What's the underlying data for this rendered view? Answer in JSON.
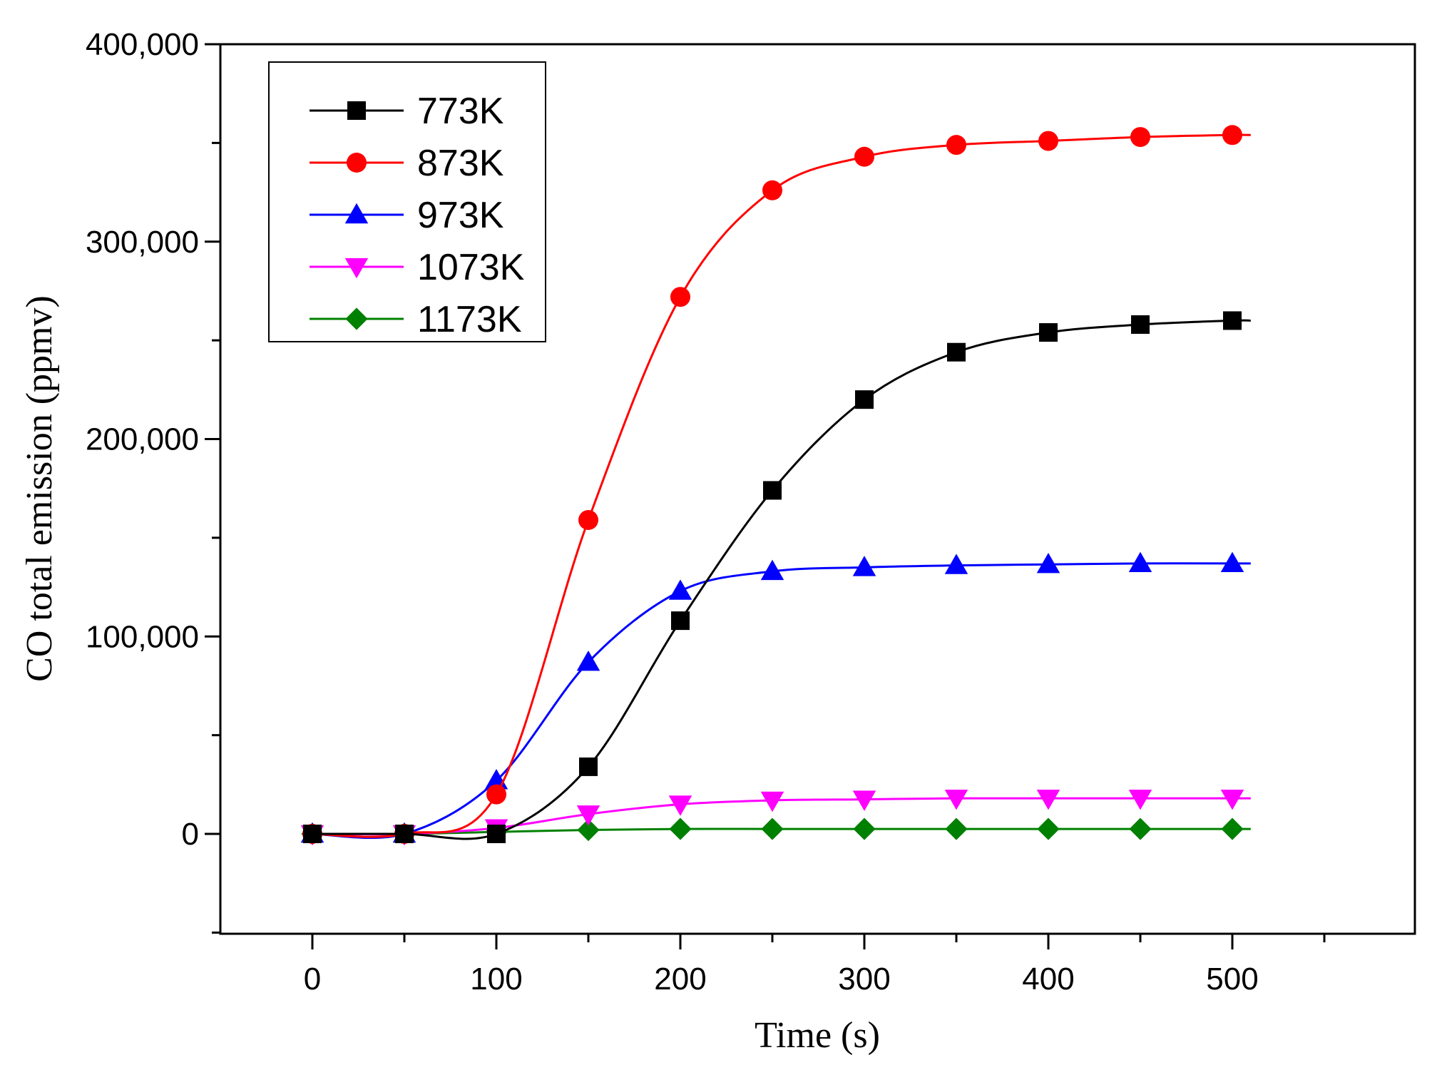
{
  "chart_data": {
    "type": "line",
    "title": "",
    "xlabel": "Time (s)",
    "ylabel": "CO total emission (ppmv)",
    "xlim": [
      -50,
      600
    ],
    "ylim": [
      -50000,
      400000
    ],
    "xticks": [
      0,
      100,
      200,
      300,
      400,
      500
    ],
    "xtick_labels": [
      "0",
      "100",
      "200",
      "300",
      "400",
      "500"
    ],
    "yticks": [
      0,
      100000,
      200000,
      300000,
      400000
    ],
    "ytick_labels": [
      "0",
      "100,000",
      "200,000",
      "300,000",
      "400,000"
    ],
    "legend_position": "top-left",
    "x": [
      0,
      50,
      100,
      150,
      200,
      250,
      300,
      350,
      400,
      450,
      500
    ],
    "series": [
      {
        "name": "773K",
        "color": "#000000",
        "marker": "square",
        "values": [
          0,
          0,
          0,
          34000,
          108000,
          174000,
          220000,
          244000,
          254000,
          258000,
          260000
        ]
      },
      {
        "name": "873K",
        "color": "#ff0000",
        "marker": "circle",
        "values": [
          0,
          0,
          20000,
          159000,
          272000,
          326000,
          343000,
          349000,
          351000,
          353000,
          354000
        ]
      },
      {
        "name": "973K",
        "color": "#0000ff",
        "marker": "triangle-up",
        "values": [
          0,
          0,
          27000,
          87000,
          123000,
          133000,
          135000,
          136000,
          136500,
          137000,
          137000
        ]
      },
      {
        "name": "1073K",
        "color": "#ff00ff",
        "marker": "triangle-down",
        "values": [
          0,
          0,
          3000,
          10000,
          15000,
          17000,
          17500,
          18000,
          18000,
          18000,
          18000
        ]
      },
      {
        "name": "1173K",
        "color": "#008000",
        "marker": "diamond",
        "values": [
          0,
          0,
          1000,
          2000,
          2500,
          2500,
          2500,
          2500,
          2500,
          2500,
          2500
        ]
      }
    ]
  }
}
